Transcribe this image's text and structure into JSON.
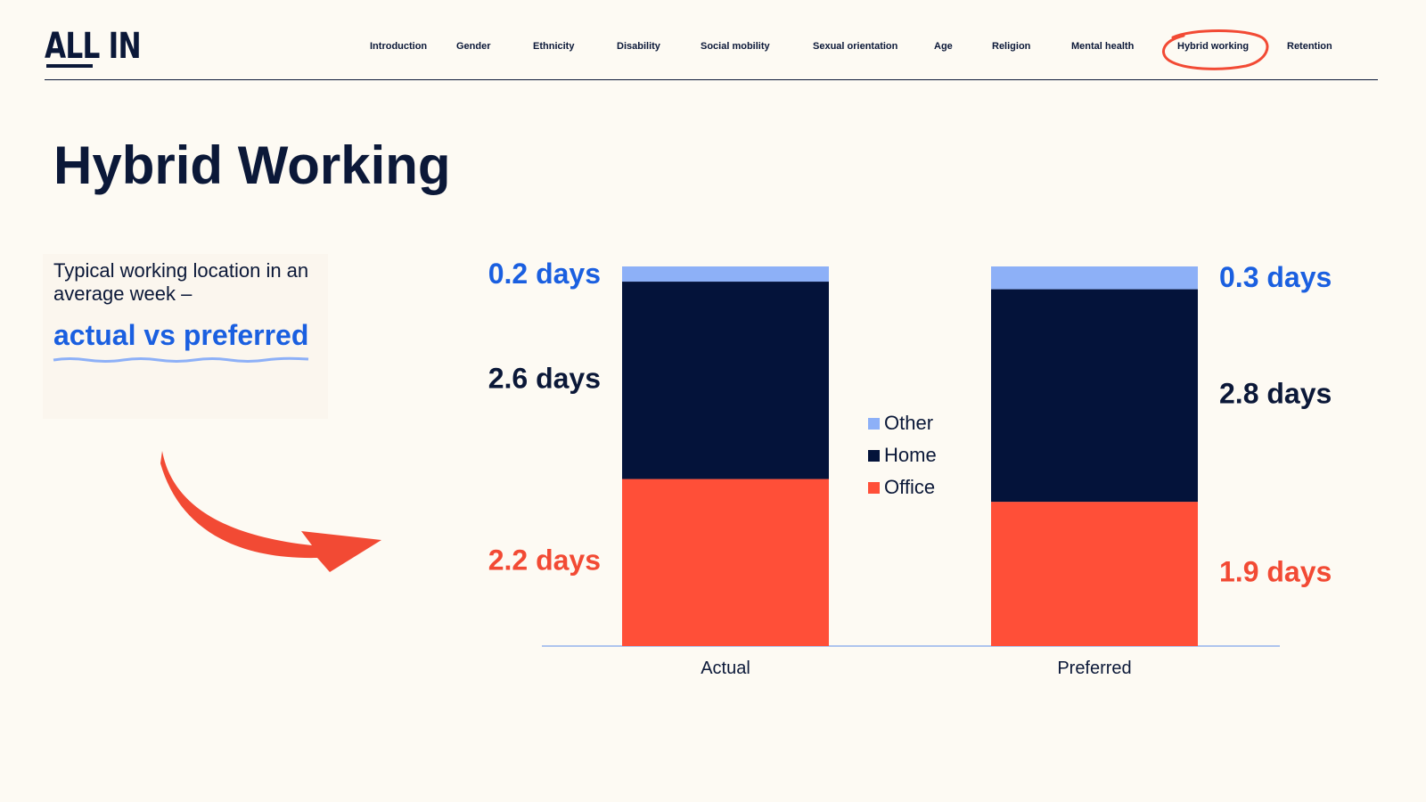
{
  "logo": {
    "text": "ALL IN"
  },
  "nav": {
    "items": [
      {
        "label": "Introduction"
      },
      {
        "label": "Gender"
      },
      {
        "label": "Ethnicity"
      },
      {
        "label": "Disability"
      },
      {
        "label": "Social mobility"
      },
      {
        "label": "Sexual orientation"
      },
      {
        "label": "Age"
      },
      {
        "label": "Religion"
      },
      {
        "label": "Mental health"
      },
      {
        "label": "Hybrid working"
      },
      {
        "label": "Retention"
      }
    ],
    "active": "Hybrid working"
  },
  "page": {
    "title": "Hybrid Working",
    "intro_text": "Typical working location in an average week –",
    "intro_highlight": "actual vs preferred"
  },
  "colors": {
    "office": "#ff4f38",
    "home": "#04133a",
    "other": "#8db0f7",
    "highlight": "#1a5fe0",
    "accent_red": "#f24a34"
  },
  "chart_data": {
    "type": "bar",
    "stacked": true,
    "categories": [
      "Actual",
      "Preferred"
    ],
    "series": [
      {
        "name": "Office",
        "values": [
          2.2,
          1.9
        ],
        "color": "#ff4f38"
      },
      {
        "name": "Home",
        "values": [
          2.6,
          2.8
        ],
        "color": "#04133a"
      },
      {
        "name": "Other",
        "values": [
          0.2,
          0.3
        ],
        "color": "#8db0f7"
      }
    ],
    "data_labels": [
      [
        "2.2 days",
        "1.9 days"
      ],
      [
        "2.6 days",
        "2.8 days"
      ],
      [
        "0.2 days",
        "0.3 days"
      ]
    ],
    "label_colors": [
      "#f24a34",
      "#0b1838",
      "#1a5fe0"
    ],
    "legend": {
      "position": "center",
      "order": [
        "Other",
        "Home",
        "Office"
      ]
    },
    "ylim": [
      0,
      5
    ],
    "grid": false,
    "title": "",
    "xlabel": "",
    "ylabel": ""
  }
}
